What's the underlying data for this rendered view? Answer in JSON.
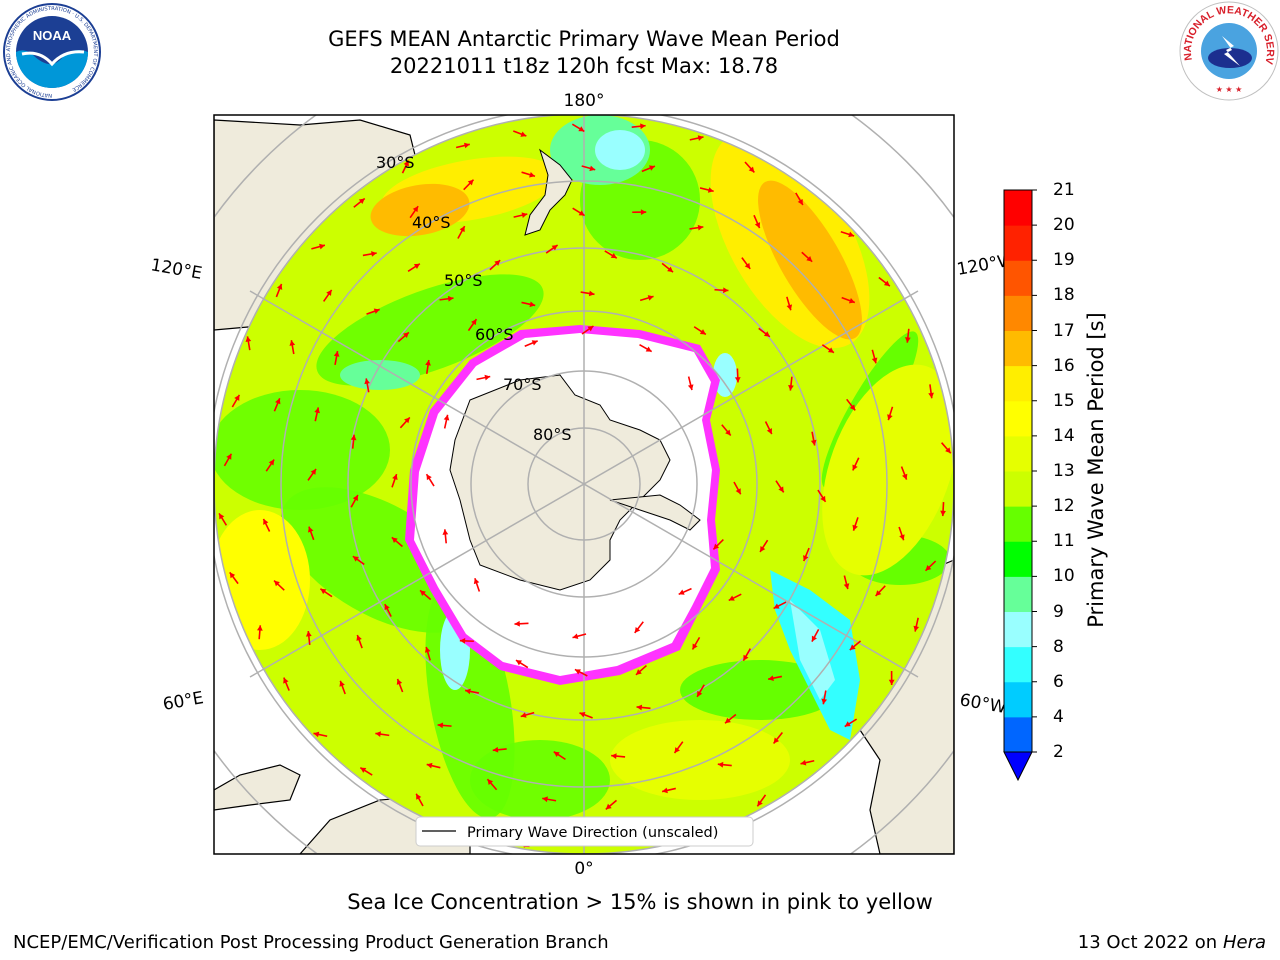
{
  "title": {
    "line1": "GEFS MEAN Antarctic Primary Wave Mean Period",
    "line2": "20221011 t18z 120h fcst   Max: 18.78"
  },
  "map": {
    "projection": "south-polar-stereographic",
    "longitude_labels": {
      "top": "180°",
      "bottom": "0°",
      "left_upper": "120°E",
      "left_lower": "60°E",
      "right_upper": "120°W",
      "right_lower": "60°W"
    },
    "latitude_labels": [
      "30°S",
      "40°S",
      "50°S",
      "60°S",
      "70°S",
      "80°S"
    ],
    "legend_label": "Primary Wave Direction (unscaled)",
    "arrow_color": "#ff0000",
    "land_color": "#efebdc",
    "sea_ice_color": "#ff33ff"
  },
  "colorbar": {
    "label": "Primary Wave Mean Period [s]",
    "ticks": [
      "2",
      "4",
      "6",
      "8",
      "9",
      "10",
      "11",
      "12",
      "13",
      "14",
      "15",
      "16",
      "17",
      "18",
      "19",
      "20",
      "21"
    ],
    "colors": [
      "#0066ff",
      "#00ccff",
      "#33ffff",
      "#99ffff",
      "#66ff99",
      "#00ff00",
      "#66ff00",
      "#ccff00",
      "#e6ff00",
      "#ffff00",
      "#ffee00",
      "#ffbb00",
      "#ff8800",
      "#ff5500",
      "#ff2200",
      "#ff0000"
    ],
    "under_color": "#0000ff"
  },
  "sea_ice_note": "Sea Ice Concentration > 15% is shown in pink to yellow",
  "footer": {
    "left": "NCEP/EMC/Verification Post Processing Product Generation Branch",
    "right_date": "13 Oct 2022 on ",
    "right_host": "Hera"
  },
  "logos": {
    "left": {
      "text": "NOAA",
      "ring": "NATIONAL OCEANIC AND ATMOSPHERIC ADMINISTRATION · U.S. DEPARTMENT OF COMMERCE"
    },
    "right": {
      "ring": "NATIONAL WEATHER SERVICE"
    }
  }
}
